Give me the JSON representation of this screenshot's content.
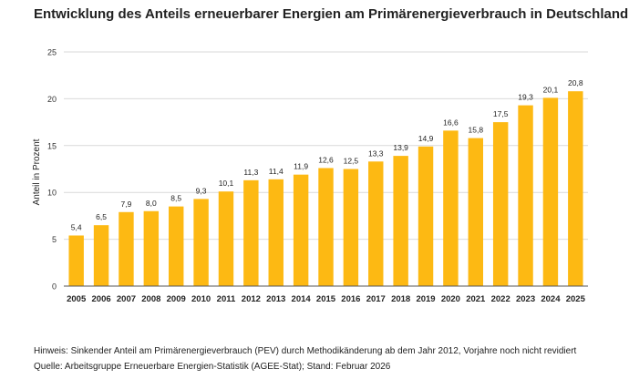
{
  "title": "Entwicklung des Anteils erneuerbarer Energien am Primärenergieverbrauch in Deutschland",
  "note": "Hinweis: Sinkender Anteil am Primärenergieverbrauch (PEV) durch Methodikänderung ab dem Jahr 2012, Vorjahre noch nicht revidiert",
  "source": "Quelle: Arbeitsgruppe Erneuerbare Energien-Statistik (AGEE-Stat); Stand: Februar 2026",
  "colors": {
    "bar": "#FDB913",
    "grid": "#D9D9D9",
    "axis": "#555555"
  },
  "chart_data": {
    "type": "bar",
    "ylabel": "Anteil in Prozent",
    "ylim": [
      0,
      25
    ],
    "yticks": [
      "0",
      "5",
      "10",
      "15",
      "20",
      "25"
    ],
    "grid": true,
    "categories": [
      "2005",
      "2006",
      "2007",
      "2008",
      "2009",
      "2010",
      "2011",
      "2012",
      "2013",
      "2014",
      "2015",
      "2016",
      "2017",
      "2018",
      "2019",
      "2020",
      "2021",
      "2022",
      "2023",
      "2024",
      "2025"
    ],
    "values": [
      5.4,
      6.5,
      7.9,
      8.0,
      8.5,
      9.3,
      10.1,
      11.3,
      11.4,
      11.9,
      12.6,
      12.5,
      13.3,
      13.9,
      14.9,
      16.6,
      15.8,
      17.5,
      19.3,
      20.1,
      20.8
    ],
    "labels": [
      "5,4",
      "6,5",
      "7,9",
      "8,0",
      "8,5",
      "9,3",
      "10,1",
      "11,3",
      "11,4",
      "11,9",
      "12,6",
      "12,5",
      "13,3",
      "13,9",
      "14,9",
      "16,6",
      "15,8",
      "17,5",
      "19,3",
      "20,1",
      "20,8"
    ]
  }
}
